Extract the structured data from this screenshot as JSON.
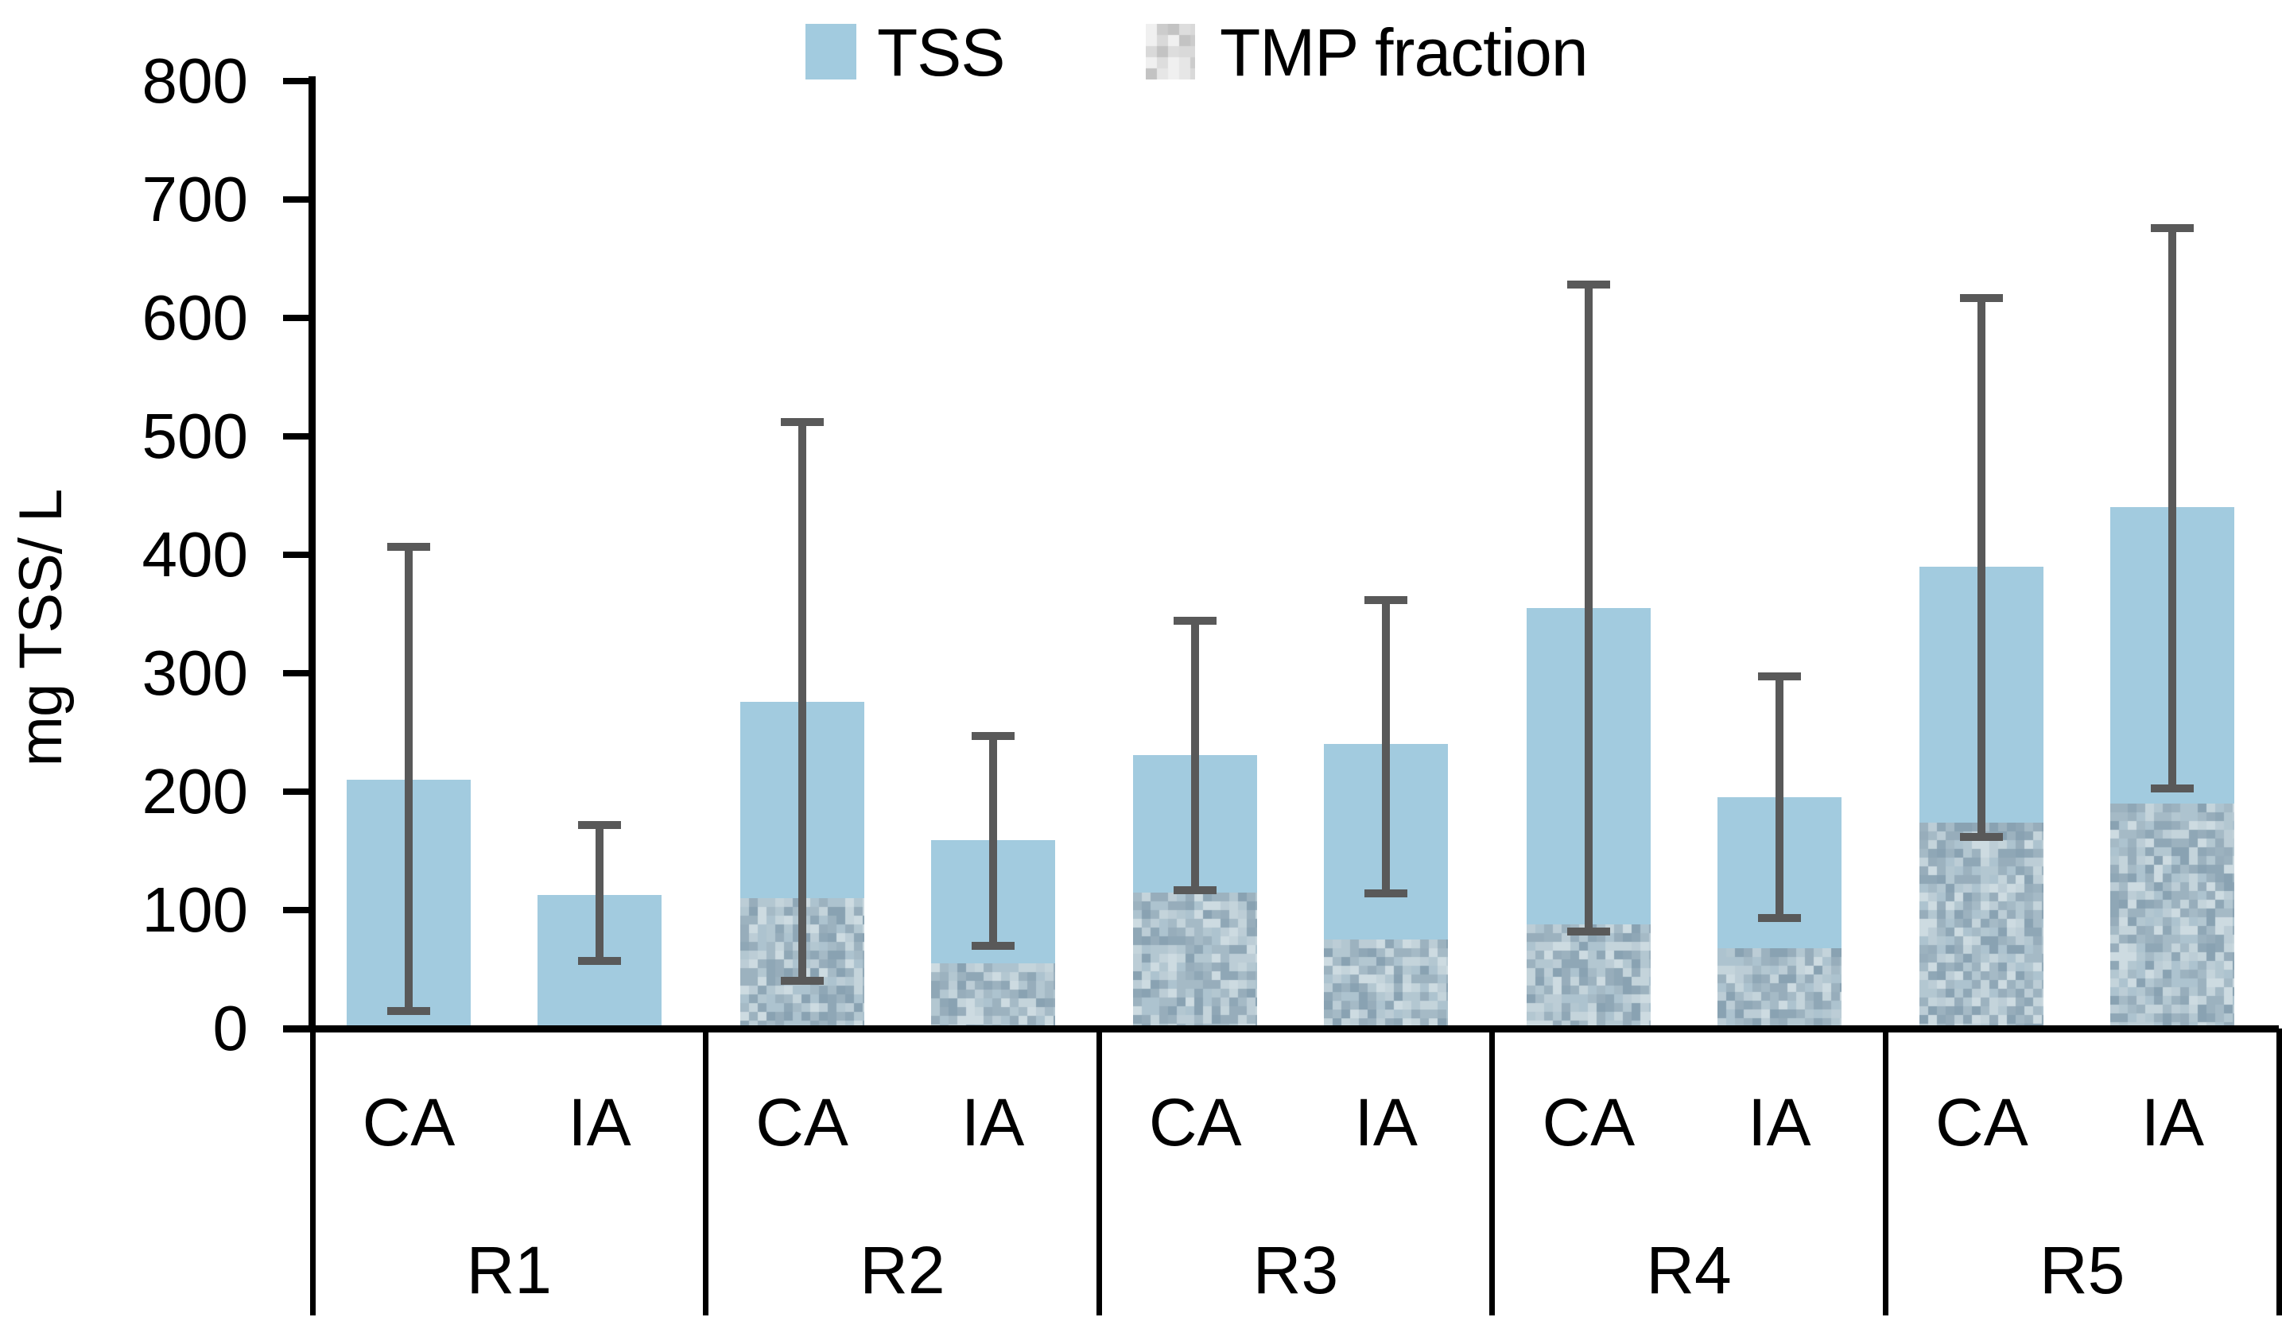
{
  "chart_data": {
    "type": "bar",
    "title": "",
    "ylabel": "mg TSS/ L",
    "ylim": [
      0,
      800
    ],
    "ytick_step": 100,
    "yticks": [
      800,
      700,
      600,
      500,
      400,
      300,
      200,
      100,
      0
    ],
    "grid": false,
    "legend_position": "top-center",
    "legend": [
      {
        "name": "TSS",
        "swatch": "solid-light-blue"
      },
      {
        "name": "TMP fraction",
        "swatch": "speckled-gray-texture"
      }
    ],
    "groups": [
      "R1",
      "R2",
      "R3",
      "R4",
      "R5"
    ],
    "sub_categories": [
      "CA",
      "IA"
    ],
    "bars": [
      {
        "group": "R1",
        "sub": "CA",
        "tss": 210,
        "tmp_fraction": 0,
        "err_low": 15,
        "err_high": 407
      },
      {
        "group": "R1",
        "sub": "IA",
        "tss": 113,
        "tmp_fraction": 0,
        "err_low": 57,
        "err_high": 172
      },
      {
        "group": "R2",
        "sub": "CA",
        "tss": 276,
        "tmp_fraction": 110,
        "err_low": 40,
        "err_high": 512
      },
      {
        "group": "R2",
        "sub": "IA",
        "tss": 159,
        "tmp_fraction": 55,
        "err_low": 70,
        "err_high": 247
      },
      {
        "group": "R3",
        "sub": "CA",
        "tss": 231,
        "tmp_fraction": 115,
        "err_low": 117,
        "err_high": 344
      },
      {
        "group": "R3",
        "sub": "IA",
        "tss": 240,
        "tmp_fraction": 75,
        "err_low": 114,
        "err_high": 362
      },
      {
        "group": "R4",
        "sub": "CA",
        "tss": 355,
        "tmp_fraction": 88,
        "err_low": 82,
        "err_high": 628
      },
      {
        "group": "R4",
        "sub": "IA",
        "tss": 195,
        "tmp_fraction": 68,
        "err_low": 93,
        "err_high": 297
      },
      {
        "group": "R5",
        "sub": "CA",
        "tss": 390,
        "tmp_fraction": 174,
        "err_low": 162,
        "err_high": 617
      },
      {
        "group": "R5",
        "sub": "IA",
        "tss": 440,
        "tmp_fraction": 190,
        "err_low": 203,
        "err_high": 676
      }
    ],
    "colors": {
      "tss_fill": "#a2cbdf",
      "error_bar": "#595959",
      "axis": "#000000",
      "text": "#000000",
      "texture_palette": [
        "#adc3cf",
        "#9cb2bf",
        "#bccdd6",
        "#8fa7b6",
        "#a5bac6",
        "#c4d4db",
        "#97adbb",
        "#b3c7d1",
        "#89a2b2",
        "#cddbe1"
      ],
      "legend_texture_palette": [
        "#e6e6e6",
        "#d9d9d9",
        "#cccccc",
        "#f0f0f0",
        "#dddddd",
        "#c3c3c3"
      ]
    }
  }
}
